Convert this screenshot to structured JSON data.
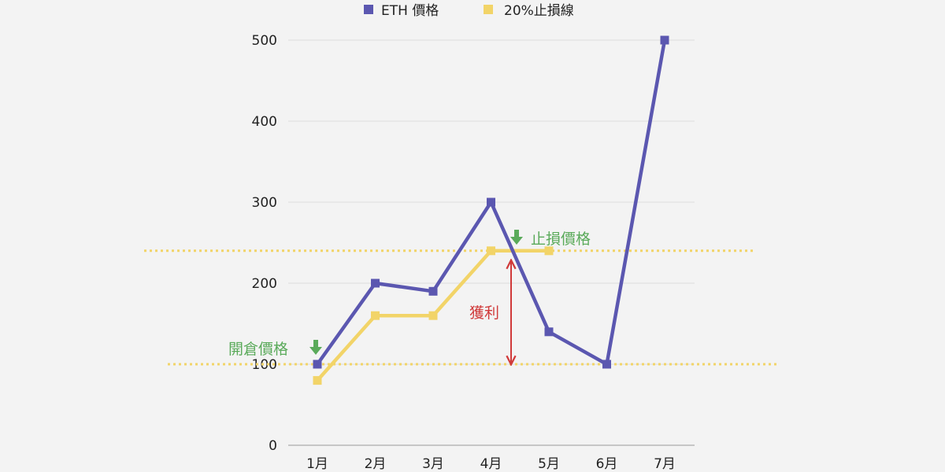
{
  "chart_data": {
    "type": "line",
    "categories": [
      "1月",
      "2月",
      "3月",
      "4月",
      "5月",
      "6月",
      "7月"
    ],
    "series": [
      {
        "name": "ETH 價格",
        "color": "#5b57b0",
        "values": [
          100,
          200,
          190,
          300,
          140,
          100,
          500
        ]
      },
      {
        "name": "20%止損線",
        "color": "#f2d468",
        "values": [
          80,
          160,
          160,
          240,
          240,
          null,
          null
        ]
      }
    ],
    "ylim": [
      0,
      500
    ],
    "yticks": [
      0,
      100,
      200,
      300,
      400,
      500
    ],
    "grid": true,
    "legend_position": "top-center",
    "reference_lines": [
      {
        "y": 240,
        "color": "#f2d468",
        "style": "dotted"
      },
      {
        "y": 100,
        "color": "#f2d468",
        "style": "dotted"
      }
    ],
    "annotations": {
      "entry_price": "開倉價格",
      "stop_price": "止損價格",
      "profit": "獲利"
    },
    "colors": {
      "green": "#5aaa5a",
      "red": "#d03a3a",
      "grid": "#dddddd"
    }
  }
}
